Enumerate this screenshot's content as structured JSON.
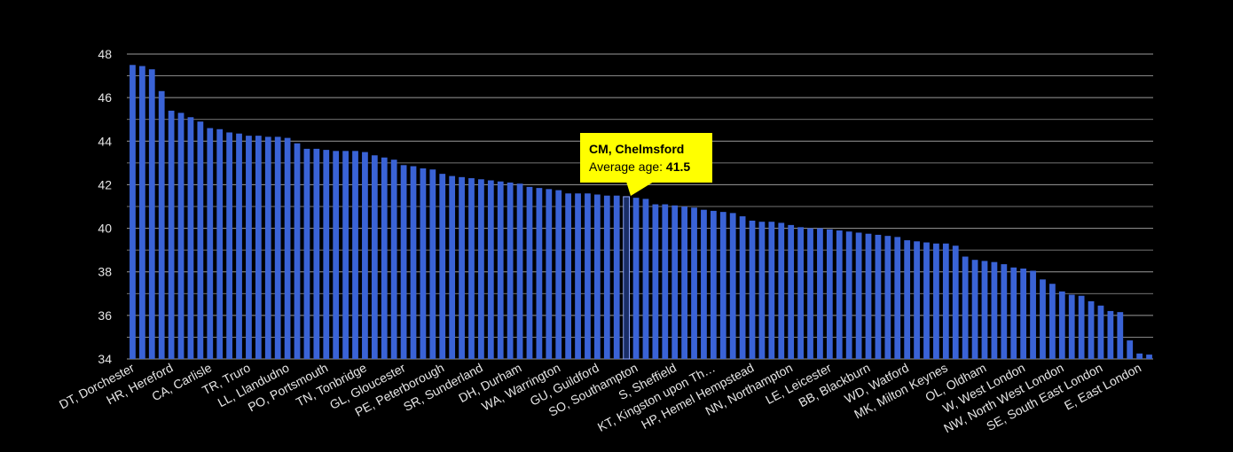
{
  "colors": {
    "background": "#000000",
    "bar": "#3a63d6",
    "bar_stroke": "#2440a8",
    "grid": "#9a9a9a",
    "tooltip": "#ffff00",
    "highlight": "#1a2e66"
  },
  "tooltip": {
    "title": "CM, Chelmsford",
    "label": "Average age:",
    "value": "41.5"
  },
  "chart_data": {
    "type": "bar",
    "title": "",
    "xlabel": "",
    "ylabel": "",
    "ylim": [
      34,
      48
    ],
    "yticks": [
      34,
      36,
      38,
      40,
      42,
      44,
      46,
      48
    ],
    "grid": true,
    "highlight_index": 51,
    "visible_labels": [
      {
        "index": 0,
        "label": "DT, Dorchester"
      },
      {
        "index": 4,
        "label": "HR, Hereford"
      },
      {
        "index": 8,
        "label": "CA, Carlisle"
      },
      {
        "index": 12,
        "label": "TR, Truro"
      },
      {
        "index": 16,
        "label": "LL, Llandudno"
      },
      {
        "index": 20,
        "label": "PO, Portsmouth"
      },
      {
        "index": 24,
        "label": "TN, Tonbridge"
      },
      {
        "index": 28,
        "label": "GL, Gloucester"
      },
      {
        "index": 32,
        "label": "PE, Peterborough"
      },
      {
        "index": 36,
        "label": "SR, Sunderland"
      },
      {
        "index": 40,
        "label": "DH, Durham"
      },
      {
        "index": 44,
        "label": "WA, Warrington"
      },
      {
        "index": 48,
        "label": "GU, Guildford"
      },
      {
        "index": 52,
        "label": "SO, Southampton"
      },
      {
        "index": 56,
        "label": "S, Sheffield"
      },
      {
        "index": 60,
        "label": "KT, Kingston upon Th…"
      },
      {
        "index": 64,
        "label": "HP, Hemel Hempstead"
      },
      {
        "index": 68,
        "label": "NN, Northampton"
      },
      {
        "index": 72,
        "label": "LE, Leicester"
      },
      {
        "index": 76,
        "label": "BB, Blackburn"
      },
      {
        "index": 80,
        "label": "WD, Watford"
      },
      {
        "index": 84,
        "label": "MK, Milton Keynes"
      },
      {
        "index": 88,
        "label": "OL, Oldham"
      },
      {
        "index": 92,
        "label": "W, West London"
      },
      {
        "index": 96,
        "label": "NW, North West London"
      },
      {
        "index": 100,
        "label": "SE, South East London"
      },
      {
        "index": 104,
        "label": "E, East London"
      }
    ],
    "values": [
      47.5,
      47.45,
      47.3,
      46.3,
      45.4,
      45.3,
      45.1,
      44.9,
      44.6,
      44.55,
      44.4,
      44.35,
      44.25,
      44.25,
      44.2,
      44.2,
      44.15,
      43.9,
      43.65,
      43.65,
      43.6,
      43.55,
      43.55,
      43.55,
      43.5,
      43.35,
      43.25,
      43.15,
      42.9,
      42.85,
      42.75,
      42.7,
      42.5,
      42.4,
      42.35,
      42.3,
      42.25,
      42.2,
      42.15,
      42.1,
      42.05,
      41.9,
      41.85,
      41.8,
      41.75,
      41.6,
      41.6,
      41.6,
      41.55,
      41.5,
      41.5,
      41.45,
      41.4,
      41.35,
      41.1,
      41.1,
      41.05,
      41.0,
      40.95,
      40.85,
      40.8,
      40.75,
      40.7,
      40.55,
      40.35,
      40.3,
      40.3,
      40.25,
      40.15,
      40.05,
      40.0,
      40.0,
      39.95,
      39.9,
      39.85,
      39.8,
      39.75,
      39.7,
      39.65,
      39.6,
      39.45,
      39.4,
      39.35,
      39.3,
      39.3,
      39.2,
      38.7,
      38.55,
      38.5,
      38.45,
      38.35,
      38.2,
      38.15,
      38.05,
      37.65,
      37.45,
      37.1,
      36.95,
      36.9,
      36.65,
      36.45,
      36.2,
      36.15,
      34.85,
      34.25,
      34.2
    ]
  }
}
